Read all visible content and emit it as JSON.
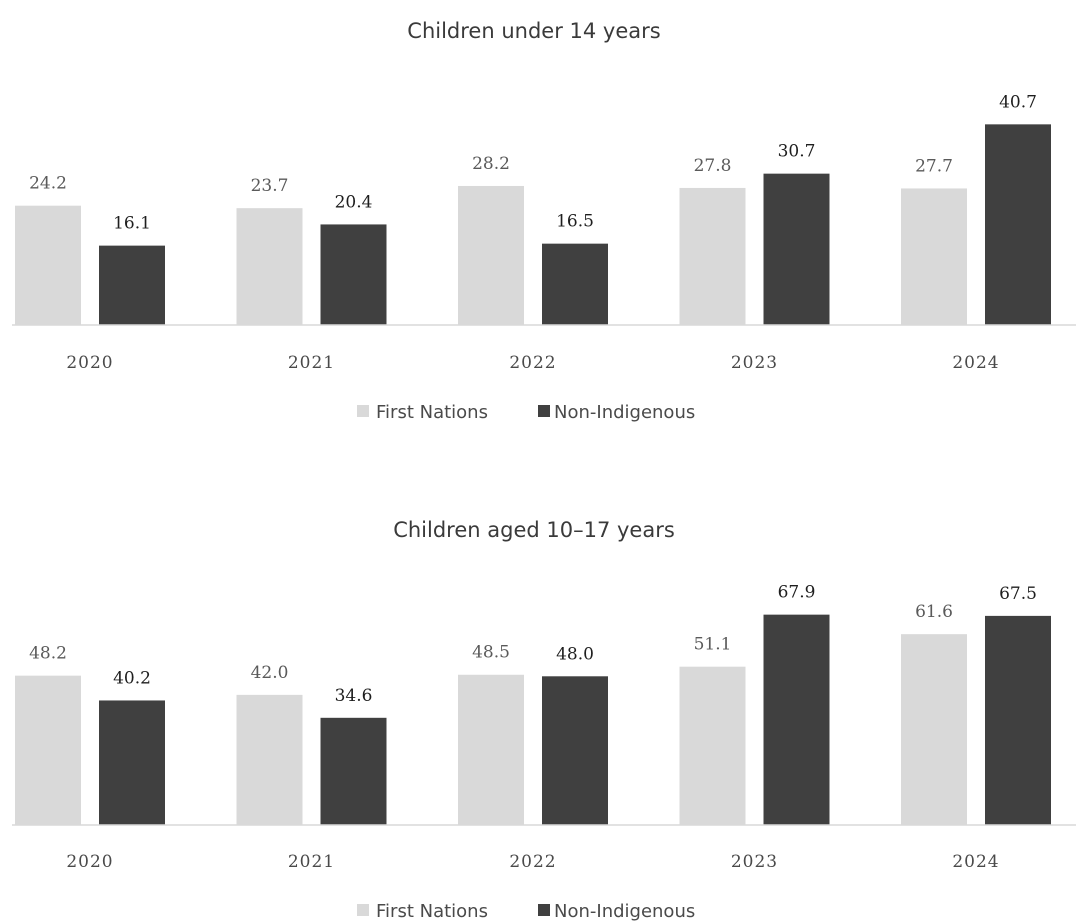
{
  "colors": {
    "first_nations": "#d9d9d9",
    "non_indigenous": "#404040"
  },
  "chart_data": [
    {
      "type": "bar",
      "title": "Children under 14 years",
      "categories": [
        "2020",
        "2021",
        "2022",
        "2023",
        "2024"
      ],
      "series": [
        {
          "name": "First Nations",
          "values": [
            24.2,
            23.7,
            28.2,
            27.8,
            27.7
          ],
          "labels": [
            "24.2",
            "23.7",
            "28.2",
            "27.8",
            "27.7"
          ]
        },
        {
          "name": "Non-Indigenous",
          "values": [
            16.1,
            20.4,
            16.5,
            30.7,
            40.7
          ],
          "labels": [
            "16.1",
            "20.4",
            "16.5",
            "30.7",
            "40.7"
          ]
        }
      ],
      "ylim": [
        0,
        41
      ],
      "legend": "bottom",
      "grid": false
    },
    {
      "type": "bar",
      "title": "Children aged 10–17 years",
      "categories": [
        "2020",
        "2021",
        "2022",
        "2023",
        "2024"
      ],
      "series": [
        {
          "name": "First Nations",
          "values": [
            48.2,
            42.0,
            48.5,
            51.1,
            61.6
          ],
          "labels": [
            "48.2",
            "42.0",
            "48.5",
            "51.1",
            "61.6"
          ]
        },
        {
          "name": "Non-Indigenous",
          "values": [
            40.2,
            34.6,
            48.0,
            67.9,
            67.5
          ],
          "labels": [
            "40.2",
            "34.6",
            "48.0",
            "67.9",
            "67.5"
          ]
        }
      ],
      "ylim": [
        0,
        68
      ],
      "legend": "bottom",
      "grid": false
    }
  ]
}
